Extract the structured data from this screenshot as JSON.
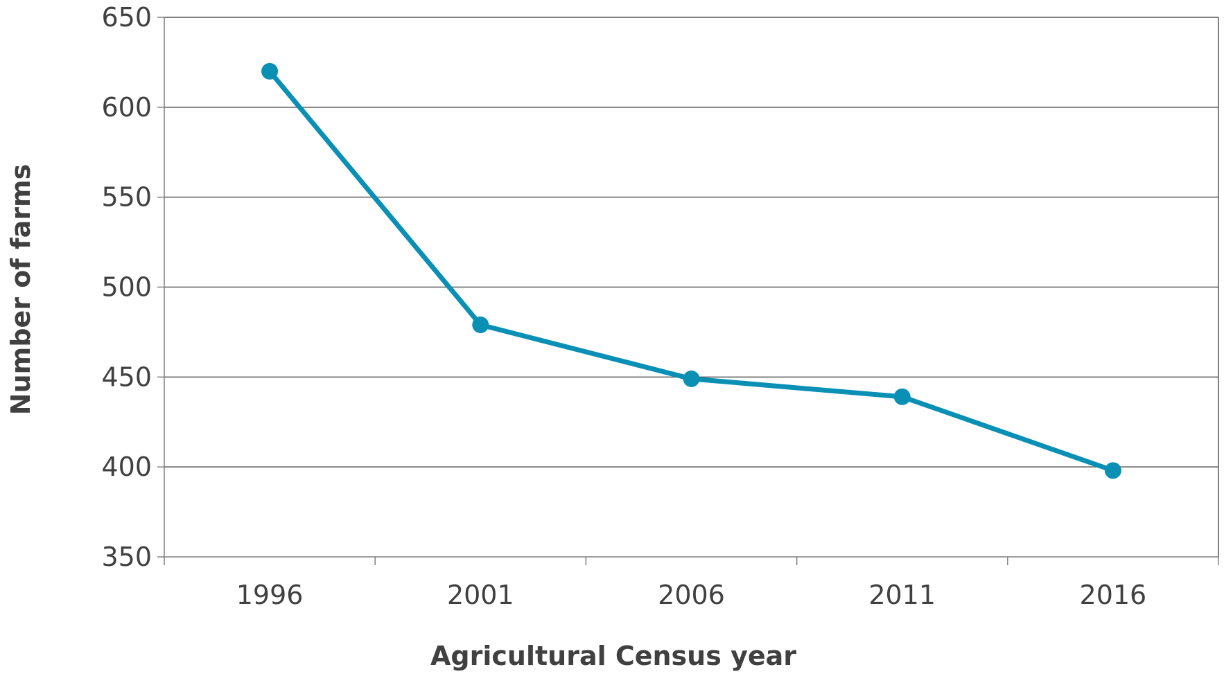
{
  "chart_data": {
    "type": "line",
    "title": "",
    "xlabel": "Agricultural Census year",
    "ylabel": "Number of farms",
    "categories": [
      "1996",
      "2001",
      "2006",
      "2011",
      "2016"
    ],
    "series": [
      {
        "values": [
          620,
          479,
          449,
          439,
          398
        ],
        "color": "#0a8fb5"
      }
    ],
    "ylim": [
      350,
      650
    ],
    "yticks": [
      350,
      400,
      450,
      500,
      550,
      600,
      650
    ],
    "grid": "horizontal",
    "legend": "none",
    "marker": "circle"
  }
}
